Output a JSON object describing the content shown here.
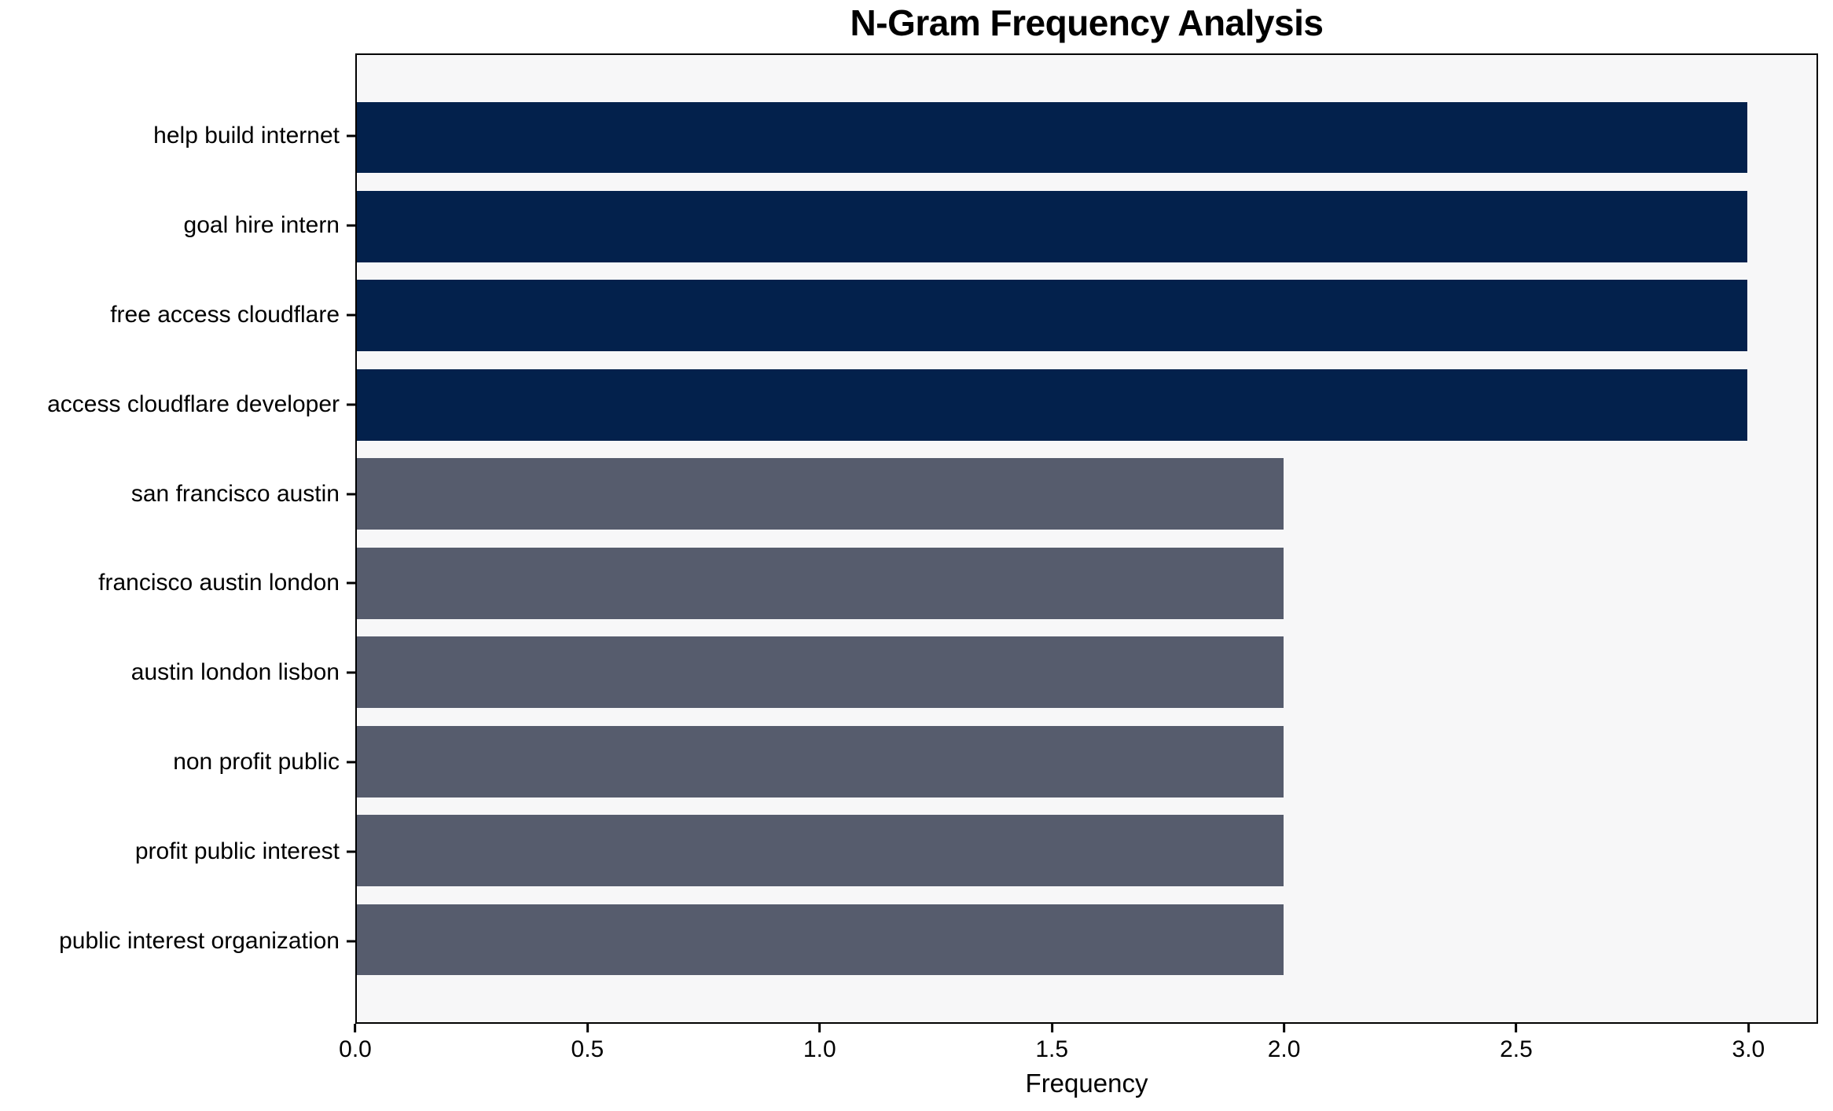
{
  "chart_data": {
    "type": "bar",
    "orientation": "horizontal",
    "title": "N-Gram Frequency Analysis",
    "xlabel": "Frequency",
    "ylabel": "",
    "categories": [
      "help build internet",
      "goal hire intern",
      "free access cloudflare",
      "access cloudflare developer",
      "san francisco austin",
      "francisco austin london",
      "austin london lisbon",
      "non profit public",
      "profit public interest",
      "public interest organization"
    ],
    "values": [
      3,
      3,
      3,
      3,
      2,
      2,
      2,
      2,
      2,
      2
    ],
    "bar_colors": [
      "#03214c",
      "#03214c",
      "#03214c",
      "#03214c",
      "#565c6d",
      "#565c6d",
      "#565c6d",
      "#565c6d",
      "#565c6d",
      "#565c6d"
    ],
    "xticks": [
      "0.0",
      "0.5",
      "1.0",
      "1.5",
      "2.0",
      "2.5",
      "3.0"
    ],
    "xlim": [
      0,
      3.15
    ],
    "grid": false,
    "legend": null,
    "colors": {
      "high_frequency_bar": "#03214c",
      "low_frequency_bar": "#565c6d",
      "plot_background": "#f7f7f8",
      "figure_background": "#ffffff",
      "axis": "#000000",
      "text": "#000000"
    }
  }
}
